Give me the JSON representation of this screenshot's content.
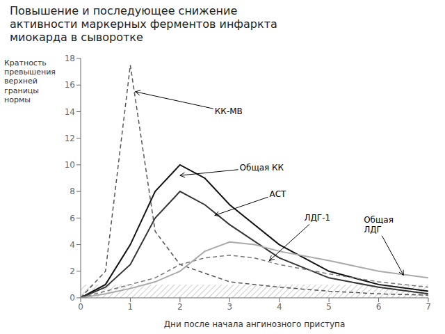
{
  "chart_data": {
    "type": "line",
    "title": "Повышение и последующее снижение\nактивности маркерных ферментов инфаркта\nмиокарда в сыворотке",
    "xlabel": "Дни после начала ангинозного приступа",
    "ylabel": "Кратность\nпревышения\nверхней\nграницы\nнормы",
    "xlim": [
      0,
      7
    ],
    "ylim": [
      0,
      18
    ],
    "xticks": [
      0,
      1,
      2,
      3,
      4,
      5,
      6,
      7
    ],
    "yticks": [
      0,
      2,
      4,
      6,
      8,
      10,
      12,
      14,
      16,
      18
    ],
    "grid": false,
    "normal_band": [
      0,
      1.0
    ],
    "series": [
      {
        "color": "#555555",
        "line_style": "dashed",
        "x": [
          0,
          0.5,
          1.0,
          1.5,
          2.0,
          3.0,
          4.0,
          5.0,
          6.0,
          7.0
        ],
        "values": [
          0,
          2,
          17.5,
          5,
          2.5,
          1.2,
          0.8,
          0.5,
          0.3,
          0.2
        ]
      },
      {
        "color": "#111111",
        "line_style": "solid",
        "x": [
          0,
          0.5,
          1.0,
          1.5,
          2.0,
          2.5,
          3.0,
          4.0,
          5.0,
          6.0,
          7.0
        ],
        "values": [
          0,
          1,
          4,
          8,
          10,
          9,
          7,
          4,
          2,
          1,
          0.5
        ]
      },
      {
        "color": "#333333",
        "line_style": "solid",
        "x": [
          0,
          0.5,
          1.0,
          1.5,
          2.0,
          2.5,
          3.0,
          4.0,
          5.0,
          6.0,
          7.0
        ],
        "values": [
          0,
          0.8,
          2.5,
          6,
          8,
          7,
          5.5,
          3,
          1.5,
          0.8,
          0.3
        ]
      },
      {
        "color": "#777777",
        "line_style": "dashed",
        "x": [
          0,
          0.5,
          1.0,
          1.5,
          2.0,
          2.5,
          3.0,
          3.5,
          4.0,
          5.0,
          6.0,
          7.0
        ],
        "values": [
          0,
          0.5,
          1.0,
          1.5,
          2.5,
          3.0,
          3.2,
          3.0,
          2.5,
          1.8,
          1.2,
          0.8
        ]
      },
      {
        "color": "#aaaaaa",
        "line_style": "solid",
        "x": [
          0,
          0.5,
          1.0,
          1.5,
          2.0,
          2.5,
          3.0,
          3.5,
          4.0,
          5.0,
          6.0,
          7.0
        ],
        "values": [
          0,
          0.3,
          0.7,
          1.2,
          2.0,
          3.5,
          4.2,
          4.0,
          3.5,
          2.8,
          2.0,
          1.5
        ]
      }
    ],
    "annotations": [
      {
        "text": "КК-МВ",
        "x": 1.1,
        "y": 15.5,
        "text_x": 2.7,
        "text_y": 14.0
      },
      {
        "text": "Общая КК",
        "x": 2.0,
        "y": 9.2,
        "text_x": 3.2,
        "text_y": 9.8
      },
      {
        "text": "АСТ",
        "x": 2.7,
        "y": 6.2,
        "text_x": 3.8,
        "text_y": 7.8
      },
      {
        "text": "ЛДГ-1",
        "x": 3.8,
        "y": 2.8,
        "text_x": 4.5,
        "text_y": 6.0
      },
      {
        "text": "Общая\nЛДГ",
        "x": 6.5,
        "y": 1.7,
        "text_x": 5.7,
        "text_y": 5.5
      }
    ]
  }
}
